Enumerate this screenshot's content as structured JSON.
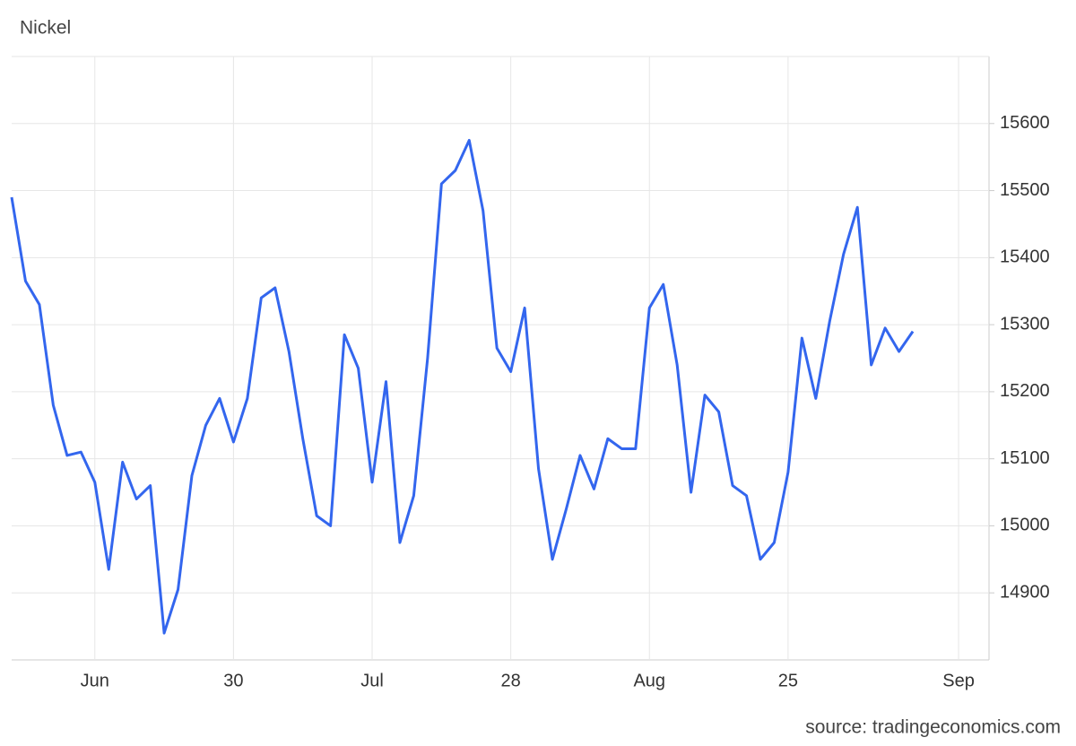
{
  "chart_data": {
    "type": "line",
    "title": "Nickel",
    "source": "source: tradingeconomics.com",
    "x": [
      0,
      1,
      2,
      3,
      4,
      5,
      6,
      7,
      8,
      9,
      10,
      11,
      12,
      13,
      14,
      15,
      16,
      17,
      18,
      19,
      20,
      21,
      22,
      23,
      24,
      25,
      26,
      27,
      28,
      29,
      30,
      31,
      32,
      33,
      34,
      35,
      36,
      37,
      38,
      39,
      40,
      41,
      42,
      43,
      44,
      45,
      46,
      47,
      48,
      49,
      50,
      51,
      52,
      53,
      54,
      55,
      56,
      57,
      58,
      59,
      60,
      61,
      62,
      63,
      64,
      65
    ],
    "series": [
      {
        "name": "Nickel",
        "color": "#3366ee",
        "values": [
          15490,
          15365,
          15330,
          15180,
          15105,
          15110,
          15065,
          14935,
          15095,
          15040,
          15060,
          14840,
          14905,
          15075,
          15150,
          15190,
          15125,
          15190,
          15340,
          15355,
          15260,
          15130,
          15015,
          15000,
          15285,
          15235,
          15065,
          15215,
          14975,
          15045,
          15250,
          15510,
          15530,
          15575,
          15470,
          15265,
          15230,
          15325,
          15085,
          14950,
          15025,
          15105,
          15055,
          15130,
          15115,
          15115,
          15325,
          15360,
          15240,
          15050,
          15195,
          15170,
          15060,
          15045,
          14950,
          14975,
          15080,
          15280,
          15190,
          15305,
          15405,
          15475,
          15240,
          15295,
          15260,
          15290
        ]
      }
    ],
    "xlim": [
      0,
      70.3
    ],
    "xticks": [
      {
        "value": 6,
        "label": "Jun"
      },
      {
        "value": 16,
        "label": "30"
      },
      {
        "value": 26,
        "label": "Jul"
      },
      {
        "value": 36,
        "label": "28"
      },
      {
        "value": 46,
        "label": "Aug"
      },
      {
        "value": 56,
        "label": "25"
      },
      {
        "value": 68.3,
        "label": "Sep"
      }
    ],
    "ylim": [
      14800,
      15700
    ],
    "yticks": [
      14900,
      15000,
      15100,
      15200,
      15300,
      15400,
      15500,
      15600
    ],
    "grid": true
  }
}
